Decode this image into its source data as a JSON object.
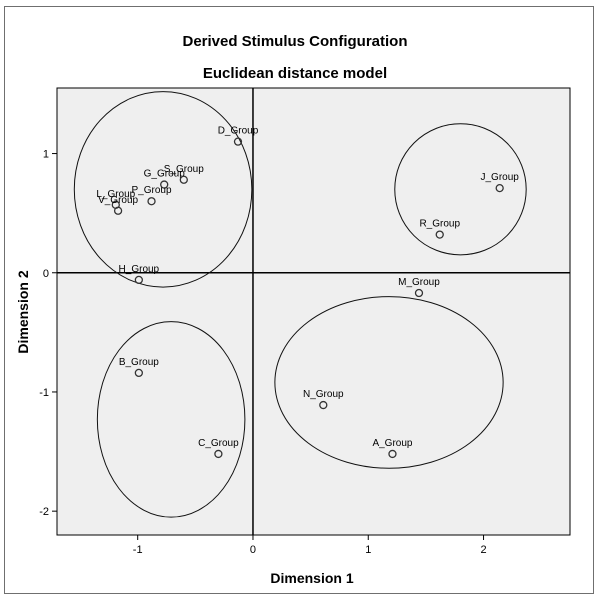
{
  "chart_data": {
    "type": "scatter",
    "title": "Derived Stimulus Configuration",
    "subtitle": "Euclidean distance model",
    "xlabel": "Dimension 1",
    "ylabel": "Dimension 2",
    "xlim": [
      -1.7,
      2.75
    ],
    "ylim": [
      -2.2,
      1.55
    ],
    "xticks": [
      -1,
      0,
      1,
      2
    ],
    "yticks": [
      -2,
      -1,
      0,
      1
    ],
    "grid": false,
    "reference_lines": {
      "x": 0,
      "y": 0
    },
    "colors": {
      "plot_background": "#efefef",
      "marker": "#333333",
      "axis": "#000000"
    },
    "points": [
      {
        "label": "D_Group",
        "x": -0.13,
        "y": 1.1
      },
      {
        "label": "G_Group",
        "x": -0.77,
        "y": 0.74
      },
      {
        "label": "S_Group",
        "x": -0.6,
        "y": 0.78
      },
      {
        "label": "L_Group",
        "x": -1.19,
        "y": 0.57
      },
      {
        "label": "P_Group",
        "x": -0.88,
        "y": 0.6
      },
      {
        "label": "V_Group",
        "x": -1.17,
        "y": 0.52
      },
      {
        "label": "H_Group",
        "x": -0.99,
        "y": -0.06
      },
      {
        "label": "J_Group",
        "x": 2.14,
        "y": 0.71
      },
      {
        "label": "R_Group",
        "x": 1.62,
        "y": 0.32
      },
      {
        "label": "M_Group",
        "x": 1.44,
        "y": -0.17
      },
      {
        "label": "B_Group",
        "x": -0.99,
        "y": -0.84
      },
      {
        "label": "C_Group",
        "x": -0.3,
        "y": -1.52
      },
      {
        "label": "N_Group",
        "x": 0.61,
        "y": -1.11
      },
      {
        "label": "A_Group",
        "x": 1.21,
        "y": -1.52
      }
    ],
    "group_ellipses": [
      {
        "cx": -0.78,
        "cy": 0.7,
        "rx": 0.77,
        "ry": 0.82
      },
      {
        "cx": 1.8,
        "cy": 0.7,
        "rx": 0.57,
        "ry": 0.55
      },
      {
        "cx": -0.71,
        "cy": -1.23,
        "rx": 0.64,
        "ry": 0.82
      },
      {
        "cx": 1.18,
        "cy": -0.92,
        "rx": 0.99,
        "ry": 0.72
      }
    ]
  }
}
